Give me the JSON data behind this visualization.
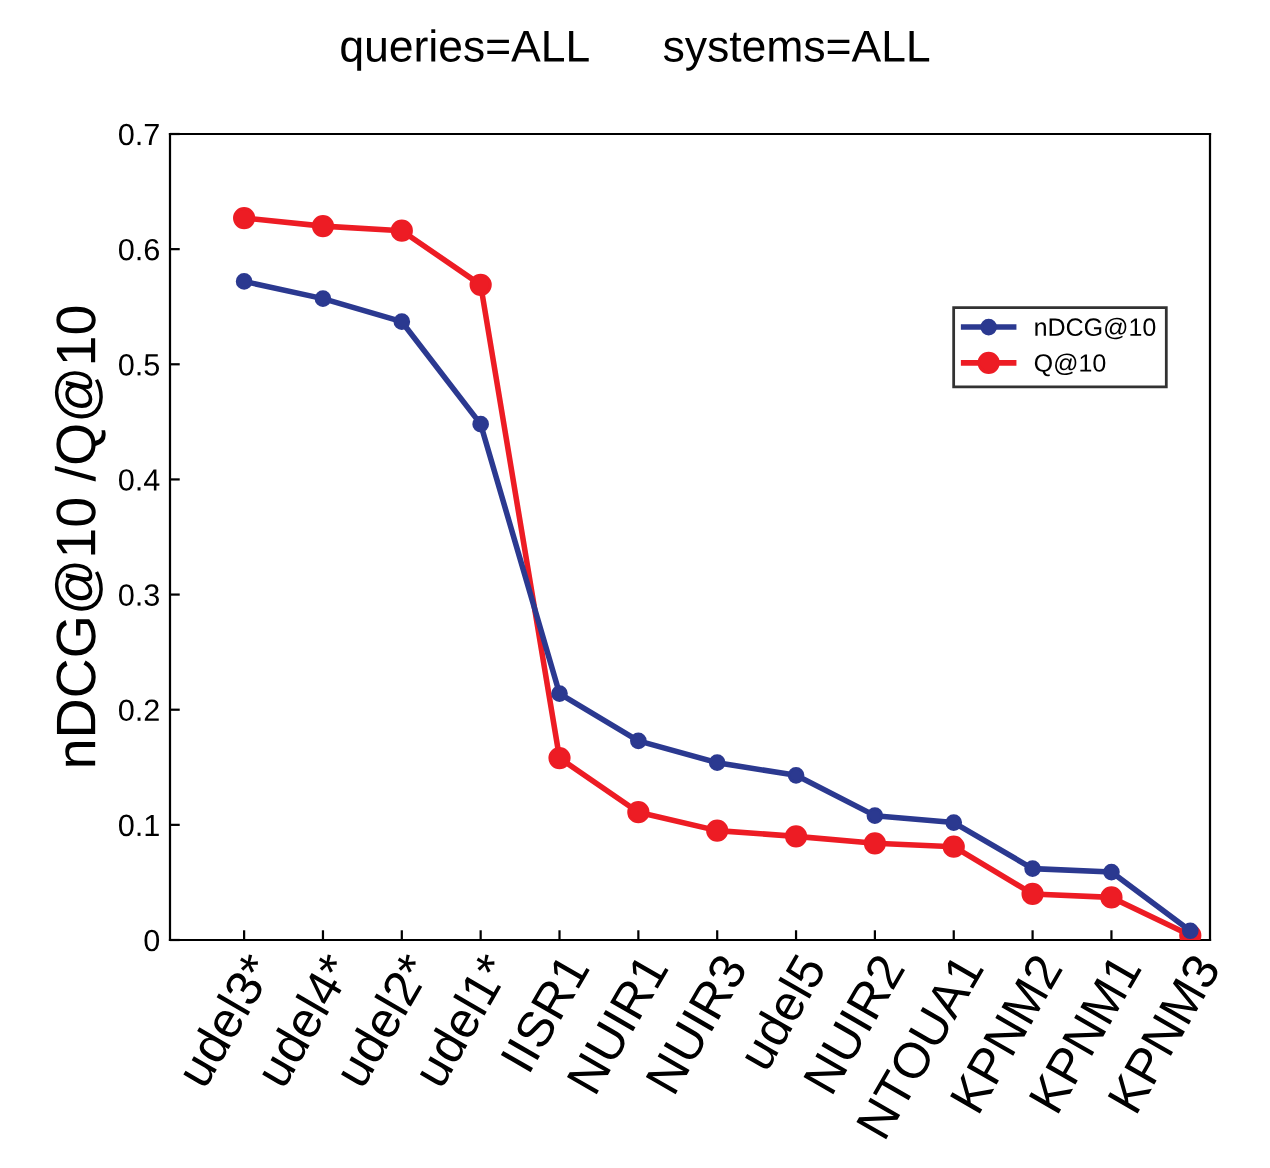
{
  "chart_data": {
    "type": "line",
    "title": "queries=ALL      systems=ALL",
    "ylabel": "nDCG@10 /Q@10",
    "categories": [
      "udel3*",
      "udel4*",
      "udel2*",
      "udel1*",
      "IISR1",
      "NUIR1",
      "NUIR3",
      "udel5",
      "NUIR2",
      "NTOUA1",
      "KPNM2",
      "KPNM1",
      "KPNM3"
    ],
    "series": [
      {
        "name": "nDCG@10",
        "color": "#2b3990",
        "values": [
          0.572,
          0.557,
          0.537,
          0.448,
          0.214,
          0.173,
          0.154,
          0.143,
          0.108,
          0.102,
          0.062,
          0.059,
          0.008
        ]
      },
      {
        "name": "Q@10",
        "color": "#ed1c24",
        "values": [
          0.627,
          0.62,
          0.616,
          0.569,
          0.158,
          0.111,
          0.095,
          0.09,
          0.084,
          0.081,
          0.04,
          0.037,
          0.004
        ]
      }
    ],
    "ylim": [
      0,
      0.7
    ],
    "yticks": [
      0,
      0.1,
      0.2,
      0.3,
      0.4,
      0.5,
      0.6,
      0.7
    ],
    "grid": false,
    "legend": "top right",
    "marker": "circle",
    "line_style": "solid"
  }
}
